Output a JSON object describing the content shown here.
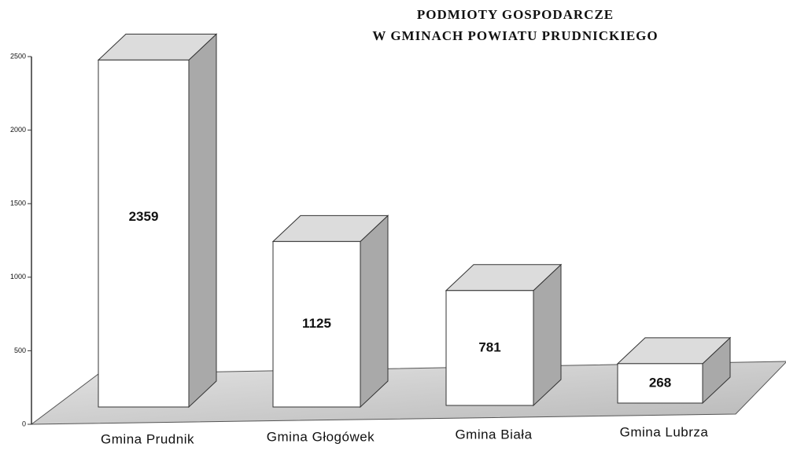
{
  "chart_data": {
    "type": "bar3d",
    "title": [
      "PODMIOTY GOSPODARCZE",
      "W GMINACH POWIATU PRUDNICKIEGO"
    ],
    "categories": [
      "Gmina Prudnik",
      "Gmina Głogówek",
      "Gmina Biała",
      "Gmina Lubrza"
    ],
    "values": [
      2359,
      1125,
      781,
      268
    ],
    "color": "#ffffff",
    "ylim": [
      0,
      2500
    ],
    "yticks": [
      0,
      500,
      1000,
      1500,
      2000,
      2500
    ]
  }
}
